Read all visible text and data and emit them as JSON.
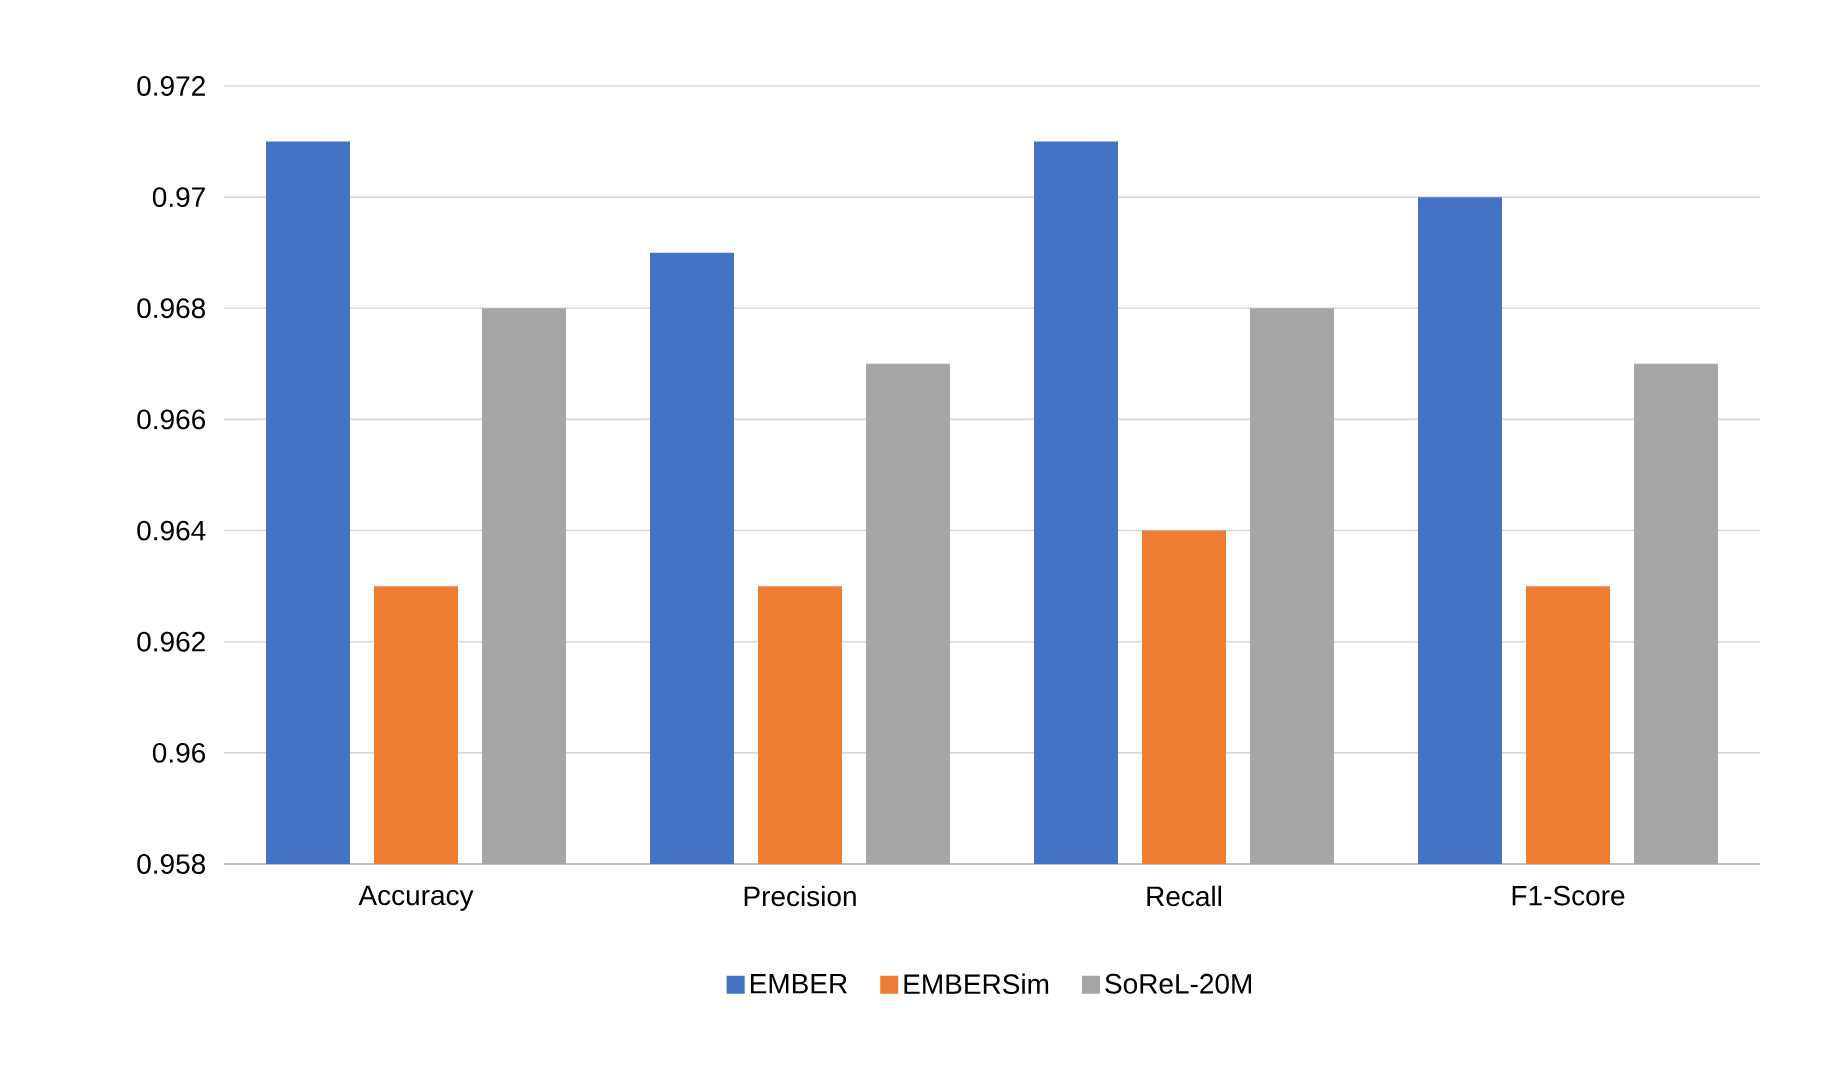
{
  "chart_data": {
    "type": "bar",
    "categories": [
      "Accuracy",
      "Precision",
      "Recall",
      "F1-Score"
    ],
    "series": [
      {
        "name": "EMBER",
        "color": "#4472c4",
        "values": [
          0.971,
          0.969,
          0.971,
          0.97
        ]
      },
      {
        "name": "EMBERSim",
        "color": "#ed7d31",
        "values": [
          0.963,
          0.963,
          0.964,
          0.963
        ]
      },
      {
        "name": "SoReL-20M",
        "color": "#a5a5a5",
        "values": [
          0.968,
          0.967,
          0.968,
          0.967
        ]
      }
    ],
    "ylim": [
      0.958,
      0.972
    ],
    "yticks": [
      0.958,
      0.96,
      0.962,
      0.964,
      0.966,
      0.968,
      0.97,
      0.972
    ],
    "grid": "y",
    "legend": "bottom"
  }
}
